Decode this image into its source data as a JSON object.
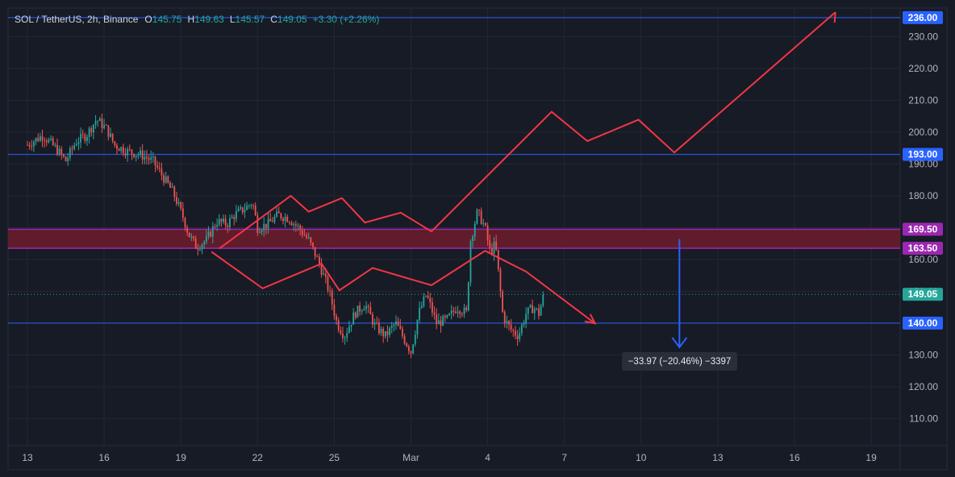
{
  "header": {
    "symbol": "SOL / TetherUS, 2h, Binance",
    "open_label": "O",
    "open": "145.75",
    "high_label": "H",
    "high": "149.63",
    "low_label": "L",
    "low": "145.57",
    "close_label": "C",
    "close": "149.05",
    "change": "+3.30 (+2.26%)"
  },
  "measure_label": "−33.97 (−20.46%) −3397",
  "colors": {
    "background": "#171b26",
    "grid": "#232733",
    "up": "#26a69a",
    "down": "#ef5350",
    "drawing": "#f23645",
    "hline": "#2962ff",
    "zone_fill": "#6d1c2c",
    "zone_border": "#9c27b0",
    "arrow": "#2962ff",
    "axis_text": "#b2b5be"
  },
  "chart_data": {
    "type": "candlestick",
    "title": "SOL / TetherUS, 2h, Binance",
    "ylim": [
      101.5,
      239
    ],
    "y_ticks": [
      "110.00",
      "120.00",
      "130.00",
      "140.00",
      "150.00",
      "160.00",
      "170.00",
      "180.00",
      "190.00",
      "200.00",
      "210.00",
      "220.00",
      "230.00"
    ],
    "x_tick_labels": [
      "13",
      "16",
      "19",
      "22",
      "25",
      "Mar",
      "4",
      "7",
      "10",
      "13",
      "16",
      "19"
    ],
    "x_tick_days": [
      0,
      3,
      6,
      9,
      12,
      15,
      18,
      21,
      24,
      27,
      30,
      33
    ],
    "price_path": [
      [
        0,
        196
      ],
      [
        0.6,
        199
      ],
      [
        1.1,
        195
      ],
      [
        1.5,
        191
      ],
      [
        1.9,
        197
      ],
      [
        2.3,
        199
      ],
      [
        2.7,
        204
      ],
      [
        3.1,
        201
      ],
      [
        3.4,
        196
      ],
      [
        3.9,
        194
      ],
      [
        4.4,
        193
      ],
      [
        4.9,
        191
      ],
      [
        5.3,
        186
      ],
      [
        5.7,
        181
      ],
      [
        6.1,
        173
      ],
      [
        6.3,
        168
      ],
      [
        6.6,
        164
      ],
      [
        7.0,
        166
      ],
      [
        7.4,
        172
      ],
      [
        7.8,
        171
      ],
      [
        8.1,
        174
      ],
      [
        8.5,
        176
      ],
      [
        8.8,
        178
      ],
      [
        9.0,
        170
      ],
      [
        9.4,
        171
      ],
      [
        9.8,
        174
      ],
      [
        10.2,
        173
      ],
      [
        10.6,
        170
      ],
      [
        11.0,
        166
      ],
      [
        11.4,
        159
      ],
      [
        11.8,
        150
      ],
      [
        12.1,
        140
      ],
      [
        12.4,
        136
      ],
      [
        12.8,
        143
      ],
      [
        13.2,
        146
      ],
      [
        13.6,
        139
      ],
      [
        14.0,
        136
      ],
      [
        14.4,
        140
      ],
      [
        14.8,
        134
      ],
      [
        15.0,
        131
      ],
      [
        15.3,
        143
      ],
      [
        15.6,
        149
      ],
      [
        16.0,
        140
      ],
      [
        16.4,
        141
      ],
      [
        16.8,
        145
      ],
      [
        17.2,
        143
      ],
      [
        17.3,
        165
      ],
      [
        17.6,
        175
      ],
      [
        17.9,
        170
      ],
      [
        18.1,
        162
      ],
      [
        18.3,
        165
      ],
      [
        18.6,
        142
      ],
      [
        18.9,
        138
      ],
      [
        19.2,
        136
      ],
      [
        19.5,
        143
      ],
      [
        19.8,
        145
      ],
      [
        20.0,
        143
      ],
      [
        20.2,
        149
      ]
    ],
    "drawings": {
      "horizontal_lines": [
        236.0,
        193.0,
        140.0
      ],
      "zone": [
        163.5,
        169.5
      ],
      "current_price": 149.05,
      "upper_zigzag": [
        [
          7.5,
          163.4
        ],
        [
          10.3,
          180
        ],
        [
          11,
          175
        ],
        [
          12.3,
          179.3
        ],
        [
          13.2,
          171.6
        ],
        [
          14.6,
          174.7
        ],
        [
          15.8,
          168.8
        ],
        [
          20.5,
          206.4
        ],
        [
          21.9,
          197.2
        ],
        [
          23.9,
          203.9
        ],
        [
          25.3,
          193.6
        ],
        [
          31.6,
          237.7
        ]
      ],
      "lower_zigzag": [
        [
          7.2,
          162.4
        ],
        [
          9.2,
          150.9
        ],
        [
          11.5,
          158.7
        ],
        [
          12.2,
          150.3
        ],
        [
          13.5,
          157.3
        ],
        [
          15.8,
          151.9
        ],
        [
          17.9,
          162.7
        ],
        [
          19.5,
          156.2
        ],
        [
          22.2,
          139.9
        ]
      ],
      "measure_arrow": {
        "from": 166.4,
        "to": 132.4,
        "day": 25.5
      }
    },
    "price_axis_labels": [
      {
        "text": "236.00",
        "value": 236.0,
        "bg": "#2962ff"
      },
      {
        "text": "193.00",
        "value": 193.0,
        "bg": "#2962ff"
      },
      {
        "text": "169.50",
        "value": 169.5,
        "bg": "#9c27b0"
      },
      {
        "text": "163.50",
        "value": 163.5,
        "bg": "#9c27b0"
      },
      {
        "text": "149.05",
        "value": 149.05,
        "bg": "#26a69a"
      },
      {
        "text": "140.00",
        "value": 140.0,
        "bg": "#2962ff"
      }
    ]
  }
}
